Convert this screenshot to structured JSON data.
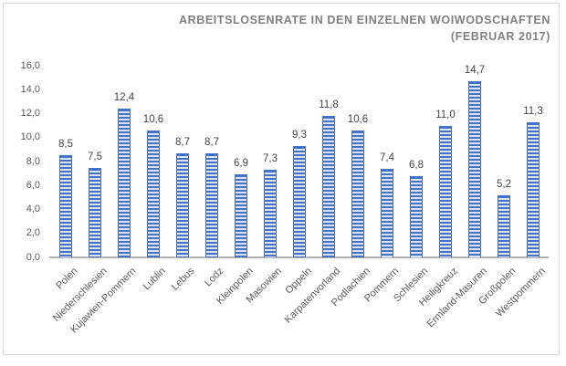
{
  "header": {
    "title_lines": [
      "ARBEITSLOSENRATE IN DEN EINZELNEN WOIWODSCHAFTEN",
      "(FEBRUAR 2017)"
    ]
  },
  "chart_data": {
    "type": "bar",
    "title": "Arbeitslosenrate in den einzelnen Woiwodschaften (Februar 2017)",
    "categories": [
      "Polen",
      "Niederschlesien",
      "Kujawien-Pommern",
      "Lublin",
      "Lebus",
      "Lodz",
      "Kleinpolen",
      "Masowien",
      "Oppeln",
      "Karpatenvorland",
      "Podlachien",
      "Pommern",
      "Schlesien",
      "Heiligkreuz",
      "Ermland-Masuren",
      "Großpolen",
      "Westpommern"
    ],
    "values": [
      8.5,
      7.5,
      12.4,
      10.6,
      8.7,
      8.7,
      6.9,
      7.3,
      9.3,
      11.8,
      10.6,
      7.4,
      6.8,
      11.0,
      14.7,
      5.2,
      11.3
    ],
    "value_labels": [
      "8,5",
      "7,5",
      "12,4",
      "10,6",
      "8,7",
      "8,7",
      "6,9",
      "7,3",
      "9,3",
      "11,8",
      "10,6",
      "7,4",
      "6,8",
      "11,0",
      "14,7",
      "5,2",
      "11,3"
    ],
    "xlabel": "",
    "ylabel": "",
    "ylim": [
      0,
      16
    ],
    "ytick_step": 2,
    "ytick_labels": [
      "0,0",
      "2,0",
      "4,0",
      "6,0",
      "8,0",
      "10,0",
      "12,0",
      "14,0",
      "16,0"
    ],
    "grid": false,
    "legend": false,
    "bar_color": "#4472C4",
    "bar_stripe_color": "#DBE5F5",
    "axis_line_color": "#B0B0B0",
    "title_color": "#7F7F7F",
    "label_color": "#595959",
    "value_label_color": "#444444"
  }
}
